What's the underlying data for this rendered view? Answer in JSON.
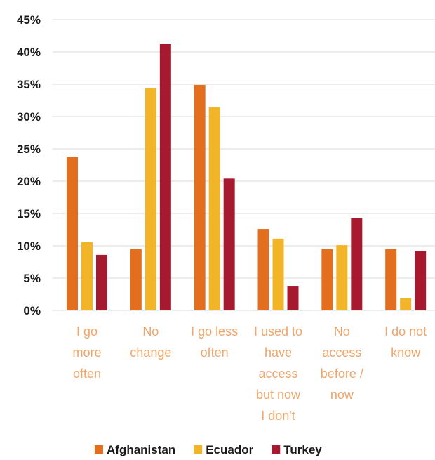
{
  "chart_data": {
    "type": "bar",
    "categories": [
      [
        "I go",
        "more",
        "often"
      ],
      [
        "No",
        "change"
      ],
      [
        "I go less",
        "often"
      ],
      [
        "I used to",
        "have",
        "access",
        "but now",
        "I don't"
      ],
      [
        "No",
        "access",
        "before /",
        "now"
      ],
      [
        "I do not",
        "know"
      ]
    ],
    "series": [
      {
        "name": "Afghanistan",
        "color": "#E36F1E",
        "values": [
          23.8,
          9.5,
          34.9,
          12.6,
          9.5,
          9.5
        ]
      },
      {
        "name": "Ecuador",
        "color": "#F2B52A",
        "values": [
          10.6,
          34.4,
          31.5,
          11.1,
          10.1,
          1.9
        ]
      },
      {
        "name": "Turkey",
        "color": "#A6192E",
        "values": [
          8.6,
          41.2,
          20.4,
          3.8,
          14.3,
          9.2
        ]
      }
    ],
    "ylim": [
      0,
      45
    ],
    "yticks": [
      0,
      5,
      10,
      15,
      20,
      25,
      30,
      35,
      40,
      45
    ],
    "ytick_format": "%",
    "grid": true,
    "legend_position": "bottom",
    "category_label_color": "#F0A56A"
  }
}
